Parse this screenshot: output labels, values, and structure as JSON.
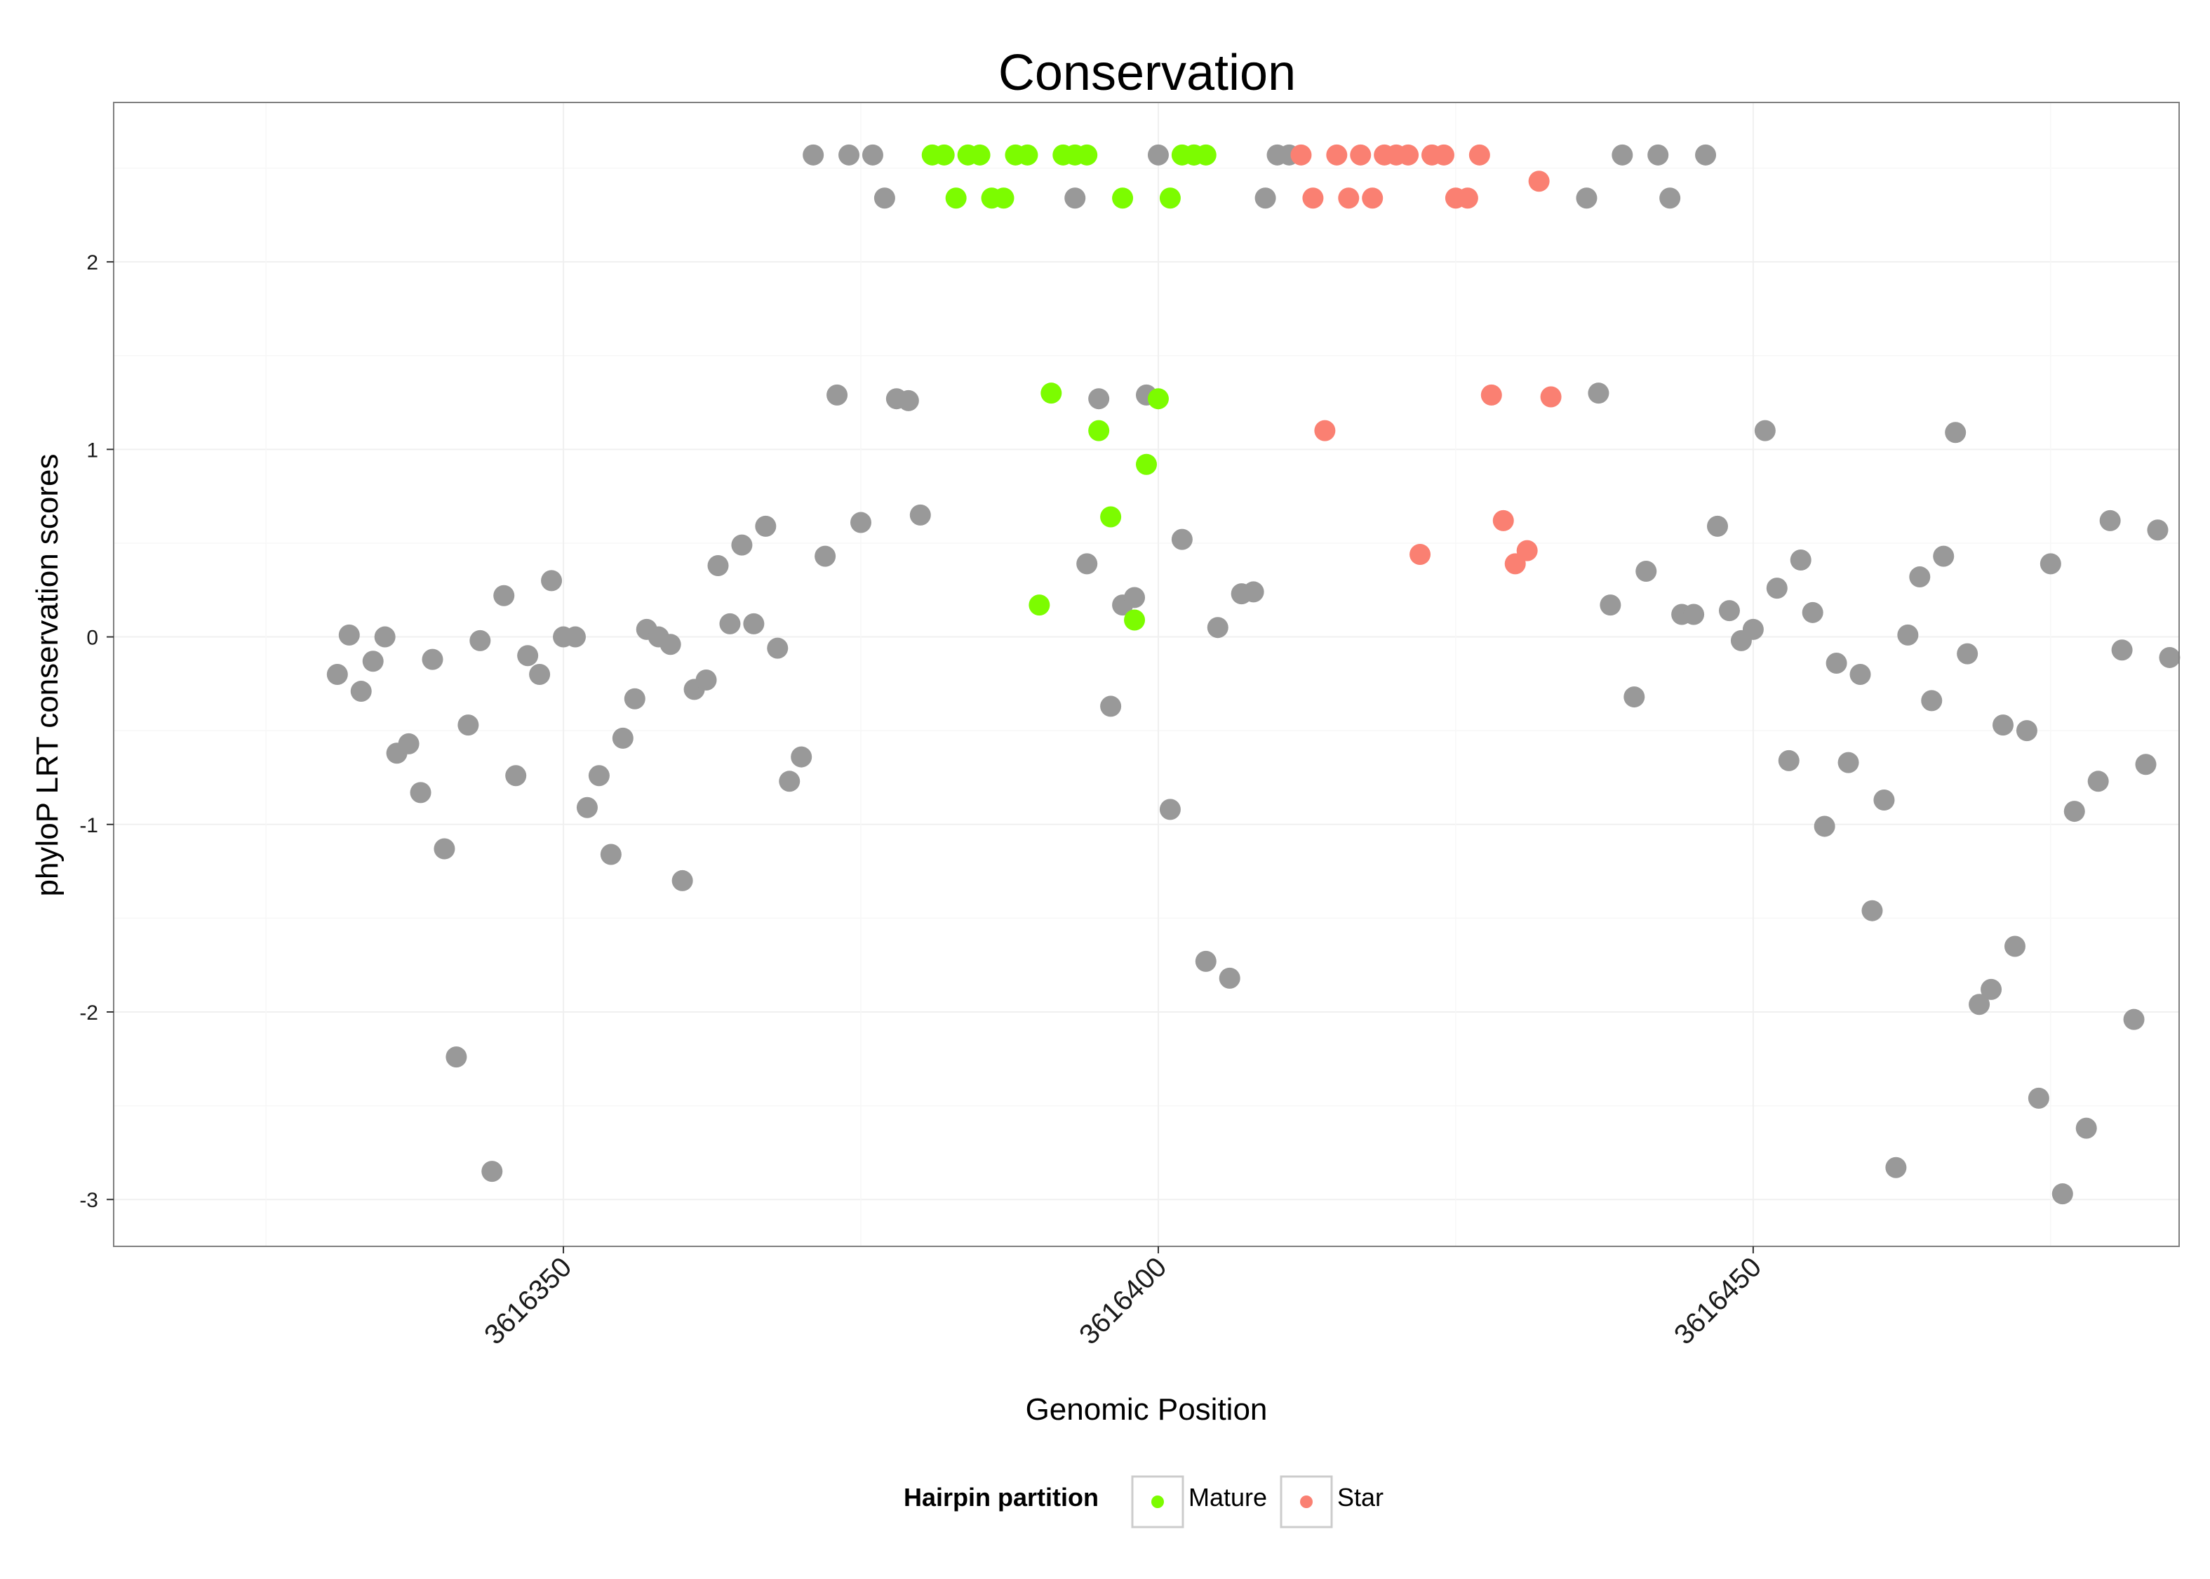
{
  "chart_data": {
    "type": "scatter",
    "title": "Conservation",
    "xlabel": "Genomic Position",
    "ylabel": "phyloP LRT conservation scores",
    "xlim": [
      3616312.2,
      3616485.8
    ],
    "ylim": [
      -3.25,
      2.85
    ],
    "x_ticks": [
      3616350,
      3616400,
      3616450
    ],
    "x_tick_labels": [
      "3616350",
      "3616400",
      "3616450"
    ],
    "y_ticks": [
      -3,
      -2,
      -1,
      0,
      1,
      2
    ],
    "y_tick_labels": [
      "-3",
      "-2",
      "-1",
      "0",
      "1",
      "2"
    ],
    "grid": true,
    "legend": {
      "title": "Hairpin partition",
      "position": "bottom",
      "entries": [
        {
          "label": "Mature",
          "color": "#7cfc00"
        },
        {
          "label": "Star",
          "color": "#fa8072"
        }
      ]
    },
    "colors": {
      "other": "#999999",
      "Mature": "#7cfc00",
      "Star": "#fa8072"
    },
    "series": [
      {
        "name": "Other",
        "points": [
          [
            3616331,
            -0.2
          ],
          [
            3616332,
            0.01
          ],
          [
            3616333,
            -0.29
          ],
          [
            3616334,
            -0.13
          ],
          [
            3616335,
            0.0
          ],
          [
            3616336,
            -0.62
          ],
          [
            3616337,
            -0.57
          ],
          [
            3616338,
            -0.83
          ],
          [
            3616339,
            -0.12
          ],
          [
            3616340,
            -1.13
          ],
          [
            3616341,
            -2.24
          ],
          [
            3616342,
            -0.47
          ],
          [
            3616343,
            -0.02
          ],
          [
            3616344,
            -2.85
          ],
          [
            3616345,
            0.22
          ],
          [
            3616346,
            -0.74
          ],
          [
            3616347,
            -0.1
          ],
          [
            3616348,
            -0.2
          ],
          [
            3616349,
            0.3
          ],
          [
            3616350,
            0.0
          ],
          [
            3616351,
            0.0
          ],
          [
            3616352,
            -0.91
          ],
          [
            3616353,
            -0.74
          ],
          [
            3616354,
            -1.16
          ],
          [
            3616355,
            -0.54
          ],
          [
            3616356,
            -0.33
          ],
          [
            3616357,
            0.04
          ],
          [
            3616358,
            0.0
          ],
          [
            3616359,
            -0.04
          ],
          [
            3616360,
            -1.3
          ],
          [
            3616361,
            -0.28
          ],
          [
            3616362,
            -0.23
          ],
          [
            3616363,
            0.38
          ],
          [
            3616364,
            0.07
          ],
          [
            3616365,
            0.49
          ],
          [
            3616366,
            0.07
          ],
          [
            3616367,
            0.59
          ],
          [
            3616368,
            -0.06
          ],
          [
            3616369,
            -0.77
          ],
          [
            3616370,
            -0.64
          ],
          [
            3616371,
            2.57
          ],
          [
            3616372,
            0.43
          ],
          [
            3616373,
            1.29
          ],
          [
            3616374,
            2.57
          ],
          [
            3616375,
            0.61
          ],
          [
            3616376,
            2.57
          ],
          [
            3616377,
            2.34
          ],
          [
            3616378,
            1.27
          ],
          [
            3616379,
            1.26
          ],
          [
            3616380,
            0.65
          ],
          [
            3616393,
            2.34
          ],
          [
            3616394,
            0.39
          ],
          [
            3616395,
            1.27
          ],
          [
            3616396,
            -0.37
          ],
          [
            3616397,
            0.17
          ],
          [
            3616398,
            0.21
          ],
          [
            3616399,
            1.29
          ],
          [
            3616400,
            2.57
          ],
          [
            3616401,
            -0.92
          ],
          [
            3616402,
            0.52
          ],
          [
            3616403,
            2.57
          ],
          [
            3616404,
            -1.73
          ],
          [
            3616405,
            0.05
          ],
          [
            3616406,
            -1.82
          ],
          [
            3616407,
            0.23
          ],
          [
            3616408,
            0.24
          ],
          [
            3616409,
            2.34
          ],
          [
            3616410,
            2.57
          ],
          [
            3616411,
            2.57
          ],
          [
            3616436,
            2.34
          ],
          [
            3616437,
            1.3
          ],
          [
            3616438,
            0.17
          ],
          [
            3616439,
            2.57
          ],
          [
            3616440,
            -0.32
          ],
          [
            3616441,
            0.35
          ],
          [
            3616442,
            2.57
          ],
          [
            3616443,
            2.34
          ],
          [
            3616444,
            0.12
          ],
          [
            3616445,
            0.12
          ],
          [
            3616446,
            2.57
          ],
          [
            3616447,
            0.59
          ],
          [
            3616448,
            0.14
          ],
          [
            3616449,
            -0.02
          ],
          [
            3616450,
            0.04
          ],
          [
            3616451,
            1.1
          ],
          [
            3616452,
            0.26
          ],
          [
            3616453,
            -0.66
          ],
          [
            3616454,
            0.41
          ],
          [
            3616455,
            0.13
          ],
          [
            3616456,
            -1.01
          ],
          [
            3616457,
            -0.14
          ],
          [
            3616458,
            -0.67
          ],
          [
            3616459,
            -0.2
          ],
          [
            3616460,
            -1.46
          ],
          [
            3616461,
            -0.87
          ],
          [
            3616462,
            -2.83
          ],
          [
            3616463,
            0.01
          ],
          [
            3616464,
            0.32
          ],
          [
            3616465,
            -0.34
          ],
          [
            3616466,
            0.43
          ],
          [
            3616467,
            1.09
          ],
          [
            3616468,
            -0.09
          ],
          [
            3616469,
            -1.96
          ],
          [
            3616470,
            -1.88
          ],
          [
            3616471,
            -0.47
          ],
          [
            3616472,
            -1.65
          ],
          [
            3616473,
            -0.5
          ],
          [
            3616474,
            -2.46
          ],
          [
            3616475,
            0.39
          ],
          [
            3616476,
            -2.97
          ],
          [
            3616477,
            -0.93
          ],
          [
            3616478,
            -2.62
          ],
          [
            3616479,
            -0.77
          ],
          [
            3616480,
            0.62
          ],
          [
            3616481,
            -0.07
          ],
          [
            3616482,
            -2.04
          ],
          [
            3616483,
            -0.68
          ],
          [
            3616484,
            0.57
          ],
          [
            3616485,
            -0.11
          ]
        ]
      },
      {
        "name": "Mature",
        "points": [
          [
            3616381,
            2.57
          ],
          [
            3616382,
            2.57
          ],
          [
            3616383,
            2.34
          ],
          [
            3616384,
            2.57
          ],
          [
            3616385,
            2.57
          ],
          [
            3616386,
            2.34
          ],
          [
            3616387,
            2.34
          ],
          [
            3616388,
            2.57
          ],
          [
            3616389,
            2.57
          ],
          [
            3616390,
            0.17
          ],
          [
            3616391,
            1.3
          ],
          [
            3616392,
            2.57
          ],
          [
            3616393,
            2.57
          ],
          [
            3616394,
            2.57
          ],
          [
            3616395,
            1.1
          ],
          [
            3616396,
            0.64
          ],
          [
            3616397,
            2.34
          ],
          [
            3616398,
            0.09
          ],
          [
            3616399,
            0.92
          ],
          [
            3616400,
            1.27
          ],
          [
            3616401,
            2.34
          ],
          [
            3616402,
            2.57
          ],
          [
            3616403,
            2.57
          ],
          [
            3616404,
            2.57
          ]
        ]
      },
      {
        "name": "Star",
        "points": [
          [
            3616412,
            2.57
          ],
          [
            3616413,
            2.34
          ],
          [
            3616414,
            1.1
          ],
          [
            3616415,
            2.57
          ],
          [
            3616416,
            2.34
          ],
          [
            3616417,
            2.57
          ],
          [
            3616418,
            2.34
          ],
          [
            3616419,
            2.57
          ],
          [
            3616420,
            2.57
          ],
          [
            3616421,
            2.57
          ],
          [
            3616422,
            0.44
          ],
          [
            3616423,
            2.57
          ],
          [
            3616424,
            2.57
          ],
          [
            3616425,
            2.34
          ],
          [
            3616426,
            2.34
          ],
          [
            3616427,
            2.57
          ],
          [
            3616428,
            1.29
          ],
          [
            3616429,
            0.62
          ],
          [
            3616430,
            0.39
          ],
          [
            3616431,
            0.46
          ],
          [
            3616432,
            2.43
          ],
          [
            3616433,
            1.28
          ]
        ]
      }
    ]
  }
}
